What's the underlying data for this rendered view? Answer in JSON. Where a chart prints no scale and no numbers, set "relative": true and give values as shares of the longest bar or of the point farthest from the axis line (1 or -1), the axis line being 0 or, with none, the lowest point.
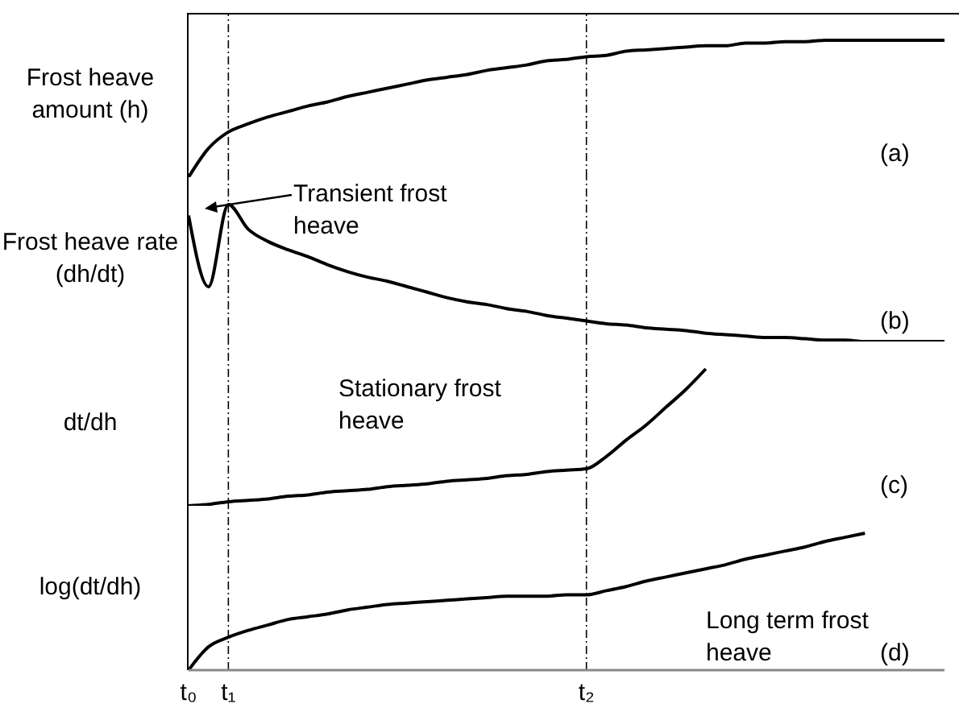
{
  "chart_data": [
    {
      "type": "line",
      "ylabel": "Frost heave amount (h)",
      "relative": true,
      "tick_labels": false,
      "categories": [
        "t₀",
        null,
        "t₁",
        null,
        null,
        null,
        null,
        null,
        null,
        null,
        null,
        null,
        null,
        null,
        null,
        null,
        null,
        null,
        null,
        null,
        "t₂",
        null,
        null,
        null,
        null,
        null,
        null,
        null,
        null,
        null,
        null,
        null,
        null,
        null,
        null,
        null,
        null,
        null,
        null
      ],
      "series": [
        {
          "color": "#000000",
          "values": [
            0,
            0.21,
            0.33,
            0.39,
            0.44,
            0.48,
            0.52,
            0.55,
            0.59,
            0.62,
            0.65,
            0.68,
            0.71,
            0.73,
            0.75,
            0.78,
            0.8,
            0.82,
            0.85,
            0.86,
            0.88,
            0.89,
            0.92,
            0.93,
            0.94,
            0.95,
            0.96,
            0.96,
            0.98,
            0.98,
            0.99,
            0.99,
            1,
            1,
            1,
            1,
            1,
            1,
            1
          ]
        }
      ],
      "ref_lines": [
        {
          "axis": "x",
          "value": "t₁",
          "line_style": "dashed"
        },
        {
          "axis": "x",
          "value": "t₂",
          "line_style": "dashed"
        }
      ],
      "annotations": [
        "(a)"
      ]
    },
    {
      "type": "line",
      "ylabel": "Frost heave rate (dh/dt)",
      "relative": true,
      "tick_labels": false,
      "categories": [
        "t₀",
        null,
        "t₁",
        null,
        null,
        null,
        null,
        null,
        null,
        null,
        null,
        null,
        null,
        null,
        null,
        null,
        null,
        null,
        null,
        null,
        "t₂",
        null,
        null,
        null,
        null,
        null,
        null,
        null,
        null,
        null,
        null,
        null,
        null,
        null,
        null,
        null,
        null,
        null,
        null
      ],
      "series": [
        {
          "color": "#000000",
          "values": [
            0.92,
            0.4,
            1,
            0.82,
            0.73,
            0.67,
            0.62,
            0.56,
            0.51,
            0.47,
            0.44,
            0.4,
            0.36,
            0.32,
            0.29,
            0.27,
            0.24,
            0.22,
            0.19,
            0.17,
            0.15,
            0.13,
            0.12,
            0.1,
            0.09,
            0.08,
            0.06,
            0.05,
            0.04,
            0.03,
            0.03,
            0.02,
            0.01,
            0.01,
            0,
            0,
            0,
            0,
            0
          ]
        }
      ],
      "ref_lines": [
        {
          "axis": "x",
          "value": "t₁",
          "line_style": "dashed"
        },
        {
          "axis": "x",
          "value": "t₂",
          "line_style": "dashed"
        }
      ],
      "annotations": [
        "Transient frost heave",
        "(b)"
      ]
    },
    {
      "type": "line",
      "ylabel": "dt/dh",
      "relative": true,
      "tick_labels": false,
      "categories": [
        "t₀",
        null,
        "t₁",
        null,
        null,
        null,
        null,
        null,
        null,
        null,
        null,
        null,
        null,
        null,
        null,
        null,
        null,
        null,
        null,
        null,
        "t₂",
        null,
        null,
        null,
        null,
        null,
        null,
        null,
        null,
        null,
        null,
        null,
        null,
        null,
        null,
        null,
        null,
        null,
        null
      ],
      "series": [
        {
          "color": "#000000",
          "values": [
            0,
            0.01,
            0.03,
            0.04,
            0.05,
            0.07,
            0.08,
            0.1,
            0.11,
            0.12,
            0.14,
            0.15,
            0.16,
            0.18,
            0.19,
            0.2,
            0.22,
            0.23,
            0.25,
            0.26,
            0.27,
            0.36,
            0.48,
            0.59,
            0.72,
            0.85,
            1,
            null,
            null,
            null,
            null,
            null,
            null,
            null,
            null,
            null,
            null,
            null,
            null
          ]
        }
      ],
      "ref_lines": [
        {
          "axis": "x",
          "value": "t₁",
          "line_style": "dashed"
        },
        {
          "axis": "x",
          "value": "t₂",
          "line_style": "dashed"
        }
      ],
      "annotations": [
        "Stationary frost heave",
        "(c)"
      ]
    },
    {
      "type": "line",
      "ylabel": "log(dt/dh)",
      "relative": true,
      "tick_labels": "x",
      "categories": [
        "t₀",
        null,
        "t₁",
        null,
        null,
        null,
        null,
        null,
        null,
        null,
        null,
        null,
        null,
        null,
        null,
        null,
        null,
        null,
        null,
        null,
        "t₂",
        null,
        null,
        null,
        null,
        null,
        null,
        null,
        null,
        null,
        null,
        null,
        null,
        null,
        null,
        null,
        null,
        null,
        null
      ],
      "series": [
        {
          "color": "#000000",
          "values": [
            0,
            0.17,
            0.24,
            0.29,
            0.33,
            0.37,
            0.39,
            0.41,
            0.44,
            0.46,
            0.48,
            0.49,
            0.5,
            0.51,
            0.52,
            0.53,
            0.54,
            0.54,
            0.54,
            0.55,
            0.55,
            0.58,
            0.61,
            0.65,
            0.68,
            0.71,
            0.74,
            0.77,
            0.81,
            0.84,
            0.87,
            0.9,
            0.94,
            0.97,
            1,
            null,
            null,
            null,
            null
          ]
        }
      ],
      "ref_lines": [
        {
          "axis": "x",
          "value": "t₁",
          "line_style": "dashed"
        },
        {
          "axis": "x",
          "value": "t₂",
          "line_style": "dashed"
        }
      ],
      "annotations": [
        "Long term frost heave",
        "(d)"
      ]
    }
  ]
}
